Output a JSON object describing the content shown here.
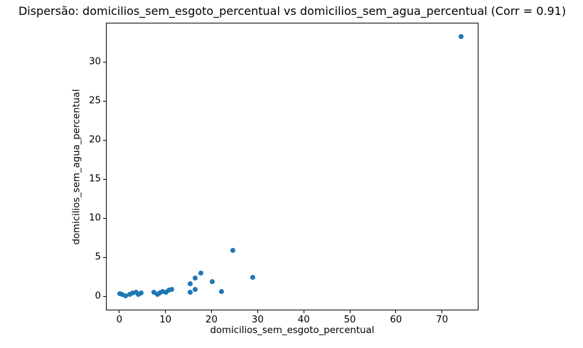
{
  "chart_data": {
    "type": "scatter",
    "title": "Dispersão: domicilios_sem_esgoto_percentual vs domicilios_sem_agua_percentual (Corr = 0.91)",
    "xlabel": "domicilios_sem_esgoto_percentual",
    "ylabel": "domicilios_sem_agua_percentual",
    "correlation": 0.91,
    "xlim": [
      -2.9,
      77.9
    ],
    "ylim": [
      -1.8,
      35.0
    ],
    "xticks": [
      0,
      10,
      20,
      30,
      40,
      50,
      60,
      70
    ],
    "yticks": [
      0,
      5,
      10,
      15,
      20,
      25,
      30
    ],
    "grid": false,
    "marker_color": "#1f77b4",
    "points": [
      [
        0.1,
        0.3
      ],
      [
        0.6,
        0.2
      ],
      [
        1.4,
        0.1
      ],
      [
        2.2,
        0.2
      ],
      [
        2.9,
        0.4
      ],
      [
        3.6,
        0.55
      ],
      [
        4.1,
        0.2
      ],
      [
        4.8,
        0.4
      ],
      [
        7.5,
        0.5
      ],
      [
        8.3,
        0.2
      ],
      [
        8.8,
        0.4
      ],
      [
        9.3,
        0.65
      ],
      [
        10.1,
        0.55
      ],
      [
        10.7,
        0.8
      ],
      [
        11.4,
        0.9
      ],
      [
        15.4,
        0.5
      ],
      [
        15.4,
        1.6
      ],
      [
        16.4,
        0.9
      ],
      [
        16.4,
        2.3
      ],
      [
        17.7,
        3.0
      ],
      [
        20.2,
        1.9
      ],
      [
        22.2,
        0.65
      ],
      [
        24.6,
        5.9
      ],
      [
        29.0,
        2.4
      ],
      [
        74.1,
        33.2
      ]
    ]
  }
}
